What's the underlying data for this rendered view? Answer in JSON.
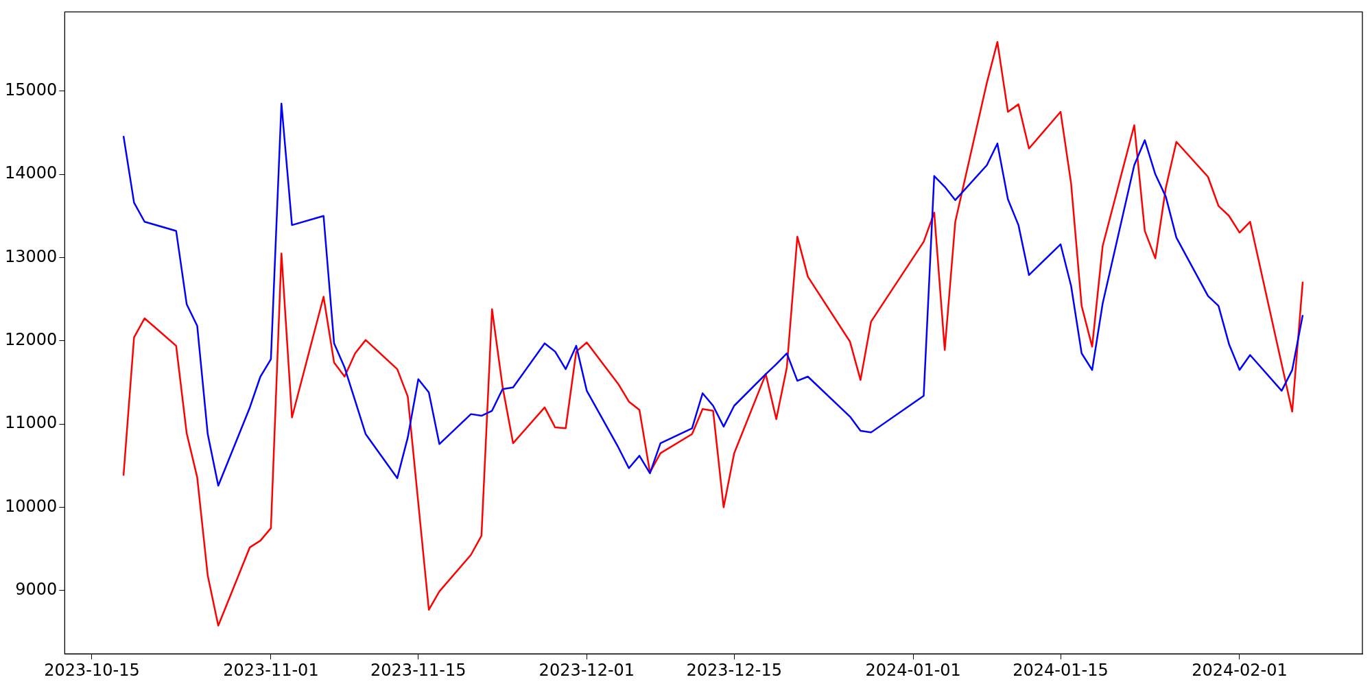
{
  "chart_data": {
    "type": "line",
    "x": [
      "2023-10-18",
      "2023-10-19",
      "2023-10-20",
      "2023-10-23",
      "2023-10-24",
      "2023-10-25",
      "2023-10-26",
      "2023-10-27",
      "2023-10-30",
      "2023-10-31",
      "2023-11-01",
      "2023-11-02",
      "2023-11-03",
      "2023-11-06",
      "2023-11-07",
      "2023-11-08",
      "2023-11-09",
      "2023-11-10",
      "2023-11-13",
      "2023-11-14",
      "2023-11-15",
      "2023-11-16",
      "2023-11-17",
      "2023-11-20",
      "2023-11-21",
      "2023-11-22",
      "2023-11-23",
      "2023-11-24",
      "2023-11-27",
      "2023-11-28",
      "2023-11-29",
      "2023-11-30",
      "2023-12-01",
      "2023-12-04",
      "2023-12-05",
      "2023-12-06",
      "2023-12-07",
      "2023-12-08",
      "2023-12-11",
      "2023-12-12",
      "2023-12-13",
      "2023-12-14",
      "2023-12-15",
      "2023-12-18",
      "2023-12-19",
      "2023-12-20",
      "2023-12-21",
      "2023-12-22",
      "2023-12-26",
      "2023-12-27",
      "2023-12-28",
      "2024-01-02",
      "2024-01-03",
      "2024-01-04",
      "2024-01-05",
      "2024-01-08",
      "2024-01-09",
      "2024-01-10",
      "2024-01-11",
      "2024-01-12",
      "2024-01-15",
      "2024-01-16",
      "2024-01-17",
      "2024-01-18",
      "2024-01-19",
      "2024-01-22",
      "2024-01-23",
      "2024-01-24",
      "2024-01-25",
      "2024-01-26",
      "2024-01-29",
      "2024-01-30",
      "2024-01-31",
      "2024-02-01",
      "2024-02-02",
      "2024-02-05",
      "2024-02-06",
      "2024-02-07"
    ],
    "series": [
      {
        "color": "#0000ff",
        "values": [
          14460,
          13660,
          13430,
          13320,
          12440,
          12180,
          10880,
          10260,
          11200,
          11570,
          11780,
          14850,
          13390,
          13500,
          11970,
          11680,
          11280,
          10880,
          10350,
          10840,
          11540,
          11380,
          10760,
          11120,
          11100,
          11160,
          11420,
          11440,
          11970,
          11870,
          11660,
          11940,
          11400,
          10720,
          10470,
          10620,
          10410,
          10770,
          10950,
          11370,
          11220,
          10970,
          11220,
          11600,
          11720,
          11850,
          11520,
          11570,
          11090,
          10920,
          10900,
          11340,
          13980,
          13850,
          13690,
          14110,
          14370,
          13700,
          13390,
          12790,
          13160,
          12660,
          11850,
          11650,
          12450,
          14110,
          14410,
          14000,
          13730,
          13240,
          12540,
          12420,
          11960,
          11650,
          11830,
          11400,
          11650,
          12310
        ]
      },
      {
        "color": "#ff0000",
        "values": [
          10380,
          12040,
          12270,
          11940,
          10890,
          10360,
          9180,
          8580,
          9520,
          9600,
          9750,
          13050,
          11080,
          12530,
          11740,
          11570,
          11850,
          12010,
          11660,
          11330,
          10050,
          8770,
          8990,
          9430,
          9660,
          12380,
          11450,
          10770,
          11200,
          10960,
          10950,
          11870,
          11980,
          11480,
          11270,
          11170,
          10420,
          10650,
          10880,
          11180,
          11160,
          10000,
          10650,
          11600,
          11060,
          11680,
          13250,
          12770,
          11990,
          11530,
          12230,
          13190,
          13540,
          11890,
          13430,
          15100,
          15590,
          14750,
          14840,
          14310,
          14750,
          13890,
          12420,
          11930,
          13140,
          14590,
          13320,
          12990,
          13840,
          14390,
          13970,
          13620,
          13500,
          13300,
          13430,
          11720,
          11150,
          12710
        ]
      }
    ],
    "xlim": [
      "2023-10-12T10:00",
      "2024-02-12T16:00"
    ],
    "xticks": [
      "2023-10-15",
      "2023-11-01",
      "2023-11-15",
      "2023-12-01",
      "2023-12-15",
      "2024-01-01",
      "2024-01-15",
      "2024-02-01"
    ],
    "ylim": [
      8240,
      15950
    ],
    "yticks": [
      9000,
      10000,
      11000,
      12000,
      13000,
      14000,
      15000
    ],
    "grid": false,
    "legend": false,
    "marker": "none",
    "line_style": "solid"
  }
}
